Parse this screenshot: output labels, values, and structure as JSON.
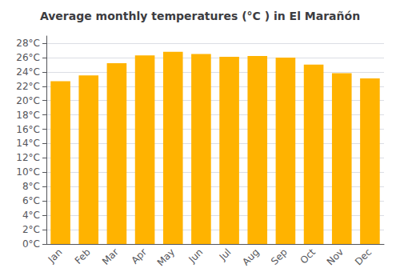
{
  "chart_data": {
    "type": "bar",
    "title": "Average monthly temperatures (°C ) in El Marañón",
    "categories": [
      "Jan",
      "Feb",
      "Mar",
      "Apr",
      "May",
      "Jun",
      "Jul",
      "Aug",
      "Sep",
      "Oct",
      "Nov",
      "Dec"
    ],
    "values": [
      22.7,
      23.5,
      25.2,
      26.3,
      26.8,
      26.5,
      26.1,
      26.2,
      26.0,
      25.0,
      23.8,
      23.1
    ],
    "color": "#FFB300",
    "ylim": [
      0,
      29
    ],
    "yticks": [
      {
        "value": 0,
        "label": "0°C"
      },
      {
        "value": 2,
        "label": "2°C"
      },
      {
        "value": 4,
        "label": "4°C"
      },
      {
        "value": 6,
        "label": "6°C"
      },
      {
        "value": 8,
        "label": "8°C"
      },
      {
        "value": 10,
        "label": "10°C"
      },
      {
        "value": 12,
        "label": "12°C"
      },
      {
        "value": 14,
        "label": "14°C"
      },
      {
        "value": 16,
        "label": "16°C"
      },
      {
        "value": 18,
        "label": "18°C"
      },
      {
        "value": 20,
        "label": "20°C"
      },
      {
        "value": 22,
        "label": "22°C"
      },
      {
        "value": 24,
        "label": "24°C"
      },
      {
        "value": 26,
        "label": "26°C"
      },
      {
        "value": 28,
        "label": "28°C"
      }
    ],
    "grid": true
  }
}
